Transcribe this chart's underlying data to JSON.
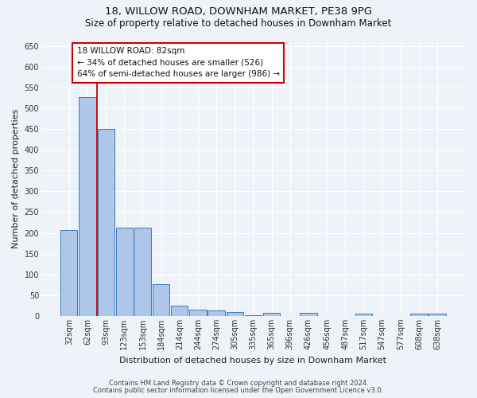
{
  "title_line1": "18, WILLOW ROAD, DOWNHAM MARKET, PE38 9PG",
  "title_line2": "Size of property relative to detached houses in Downham Market",
  "xlabel": "Distribution of detached houses by size in Downham Market",
  "ylabel": "Number of detached properties",
  "footnote_line1": "Contains HM Land Registry data © Crown copyright and database right 2024.",
  "footnote_line2": "Contains public sector information licensed under the Open Government Licence v3.0.",
  "categories": [
    "32sqm",
    "62sqm",
    "93sqm",
    "123sqm",
    "153sqm",
    "184sqm",
    "214sqm",
    "244sqm",
    "274sqm",
    "305sqm",
    "335sqm",
    "365sqm",
    "396sqm",
    "426sqm",
    "456sqm",
    "487sqm",
    "517sqm",
    "547sqm",
    "577sqm",
    "608sqm",
    "638sqm"
  ],
  "values": [
    207,
    526,
    451,
    213,
    213,
    77,
    25,
    15,
    14,
    10,
    2,
    8,
    0,
    8,
    0,
    0,
    5,
    0,
    0,
    5,
    5
  ],
  "bar_color": "#aec6e8",
  "bar_edge_color": "#3a7abf",
  "vline_color": "#cc0000",
  "annotation_text_line1": "18 WILLOW ROAD: 82sqm",
  "annotation_text_line2": "← 34% of detached houses are smaller (526)",
  "annotation_text_line3": "64% of semi-detached houses are larger (986) →",
  "annotation_box_color": "#ffffff",
  "annotation_box_edge": "#cc0000",
  "ylim": [
    0,
    660
  ],
  "yticks": [
    0,
    50,
    100,
    150,
    200,
    250,
    300,
    350,
    400,
    450,
    500,
    550,
    600,
    650
  ],
  "bg_color": "#eef2f9",
  "grid_color": "#ffffff",
  "title_fontsize": 9.5,
  "subtitle_fontsize": 8.5,
  "axis_label_fontsize": 8,
  "tick_fontsize": 7,
  "annotation_fontsize": 7.5,
  "footnote_fontsize": 6
}
